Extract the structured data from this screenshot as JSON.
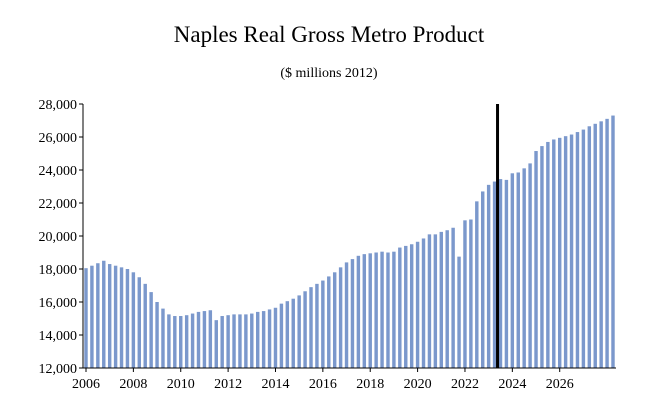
{
  "chart_data": {
    "type": "bar",
    "title": "Naples Real Gross Metro Product",
    "subtitle": "($ millions 2012)",
    "xlabel": "",
    "ylabel": "",
    "ylim": [
      12000,
      28000
    ],
    "yticks": [
      "12,000",
      "14,000",
      "16,000",
      "18,000",
      "20,000",
      "22,000",
      "24,000",
      "26,000",
      "28,000"
    ],
    "xticks": [
      "2006",
      "2008",
      "2010",
      "2012",
      "2014",
      "2016",
      "2018",
      "2020",
      "2022",
      "2024",
      "2026"
    ],
    "x_start": "2006 Q1",
    "x_frequency": "quarterly",
    "bar_color": "#7b98cc",
    "forecast_start_marker": "2023 Q3",
    "marker_color": "#000000",
    "grid": false,
    "values": [
      18050,
      18200,
      18350,
      18500,
      18300,
      18200,
      18100,
      18000,
      17800,
      17500,
      17100,
      16600,
      16000,
      15600,
      15250,
      15150,
      15150,
      15200,
      15300,
      15400,
      15450,
      15500,
      14900,
      15150,
      15200,
      15250,
      15250,
      15250,
      15300,
      15400,
      15450,
      15550,
      15650,
      15900,
      16050,
      16200,
      16400,
      16650,
      16900,
      17100,
      17300,
      17550,
      17800,
      18100,
      18400,
      18600,
      18800,
      18900,
      18950,
      19000,
      19050,
      19000,
      19050,
      19300,
      19400,
      19500,
      19650,
      19850,
      20100,
      20100,
      20250,
      20350,
      20500,
      18750,
      20950,
      21000,
      22100,
      22700,
      23100,
      23300,
      23450,
      23400,
      23800,
      23850,
      24100,
      24400,
      25150,
      25450,
      25700,
      25850,
      25950,
      26050,
      26150,
      26300,
      26450,
      26650,
      26800,
      26950,
      27100,
      27300
    ]
  }
}
